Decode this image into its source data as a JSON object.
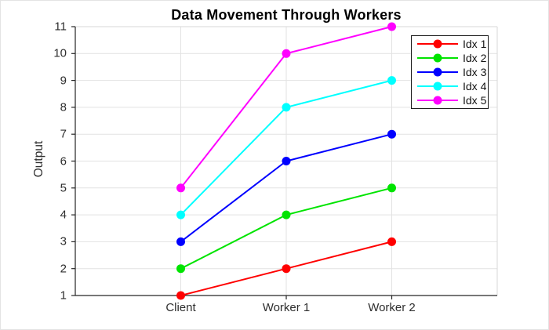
{
  "chart_data": {
    "type": "line",
    "title": "Data Movement Through Workers",
    "xlabel": "",
    "ylabel": "Output",
    "categories": [
      "Client",
      "Worker 1",
      "Worker 2"
    ],
    "series": [
      {
        "name": "Idx 1",
        "color": "#ff0000",
        "values": [
          1,
          2,
          3
        ]
      },
      {
        "name": "Idx 2",
        "color": "#00e400",
        "values": [
          2,
          4,
          5
        ]
      },
      {
        "name": "Idx 3",
        "color": "#0000ff",
        "values": [
          3,
          6,
          7
        ]
      },
      {
        "name": "Idx 4",
        "color": "#00ffff",
        "values": [
          4,
          8,
          9
        ]
      },
      {
        "name": "Idx 5",
        "color": "#ff00ff",
        "values": [
          5,
          10,
          11
        ]
      }
    ],
    "ylim": [
      1,
      11
    ],
    "yticks": [
      1,
      2,
      3,
      4,
      5,
      6,
      7,
      8,
      9,
      10,
      11
    ],
    "marker": "filled-circle",
    "grid": true,
    "legend_position": "top-right",
    "colors": {
      "axis": "#262626",
      "grid": "#e2e2e2",
      "box_edge": "#d7d7d7",
      "tick_text": "#2e2e2e",
      "background": "#ffffff"
    }
  }
}
